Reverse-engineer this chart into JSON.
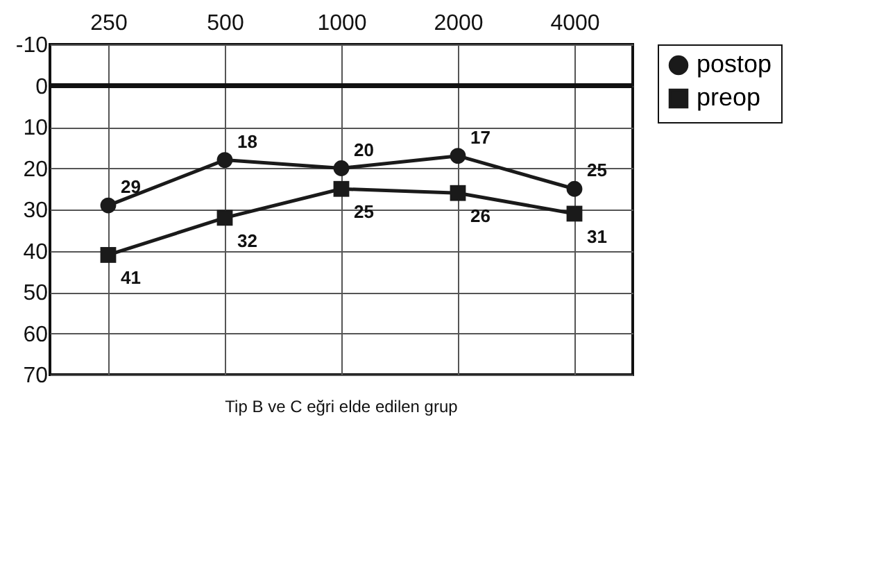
{
  "chart_data": {
    "type": "line",
    "xlabel": "Tip B ve C eğri elde edilen grup",
    "categories": [
      "250",
      "500",
      "1000",
      "2000",
      "4000"
    ],
    "series": [
      {
        "name": "postop",
        "color": "#1a1a1a",
        "marker": "circle",
        "values": [
          29,
          18,
          20,
          17,
          25
        ]
      },
      {
        "name": "preop",
        "color": "#1a1a1a",
        "marker": "square",
        "values": [
          41,
          32,
          25,
          26,
          31
        ]
      }
    ],
    "ylim": [
      70,
      -10
    ],
    "yticks": [
      -10,
      0,
      10,
      20,
      30,
      40,
      50,
      60,
      70
    ],
    "ref_lines": [
      {
        "axis": "y",
        "value": 0
      }
    ],
    "grid": true,
    "legend": "right",
    "data_labels": true
  }
}
